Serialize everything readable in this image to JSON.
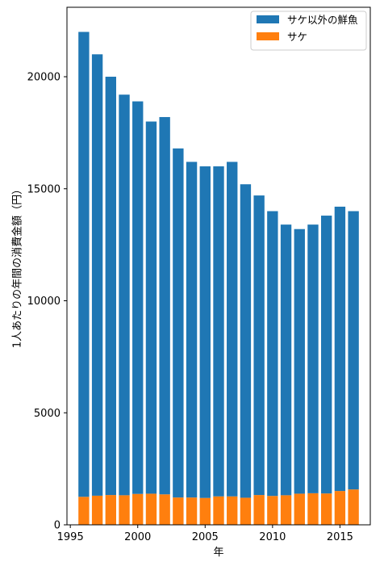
{
  "chart_data": {
    "type": "bar",
    "stacked": true,
    "x": [
      1996,
      1997,
      1998,
      1999,
      2000,
      2001,
      2002,
      2003,
      2004,
      2005,
      2006,
      2007,
      2008,
      2009,
      2010,
      2011,
      2012,
      2013,
      2014,
      2015,
      2016
    ],
    "series": [
      {
        "name": "サケ",
        "color": "#ff7f0e",
        "values": [
          1250,
          1300,
          1330,
          1320,
          1380,
          1390,
          1360,
          1220,
          1220,
          1200,
          1270,
          1270,
          1210,
          1330,
          1290,
          1320,
          1390,
          1410,
          1400,
          1510,
          1580
        ]
      },
      {
        "name": "サケ以外の鮮魚",
        "color": "#1f77b4",
        "values": [
          20750,
          19700,
          18670,
          17880,
          17520,
          16610,
          16840,
          15580,
          14980,
          14800,
          14730,
          14930,
          13990,
          13370,
          12710,
          12080,
          11810,
          11990,
          12400,
          12690,
          12420
        ]
      }
    ],
    "xticks": [
      1995,
      2000,
      2005,
      2010,
      2015
    ],
    "yticks": [
      0,
      5000,
      10000,
      15000,
      20000
    ],
    "xlim": [
      1994.75,
      2017.25
    ],
    "ylim": [
      0,
      23100
    ],
    "xlabel": "年",
    "ylabel": "1人あたりの年間の消費金額（円）",
    "legend": {
      "placement": "top-right",
      "items": [
        {
          "label": "サケ以外の鮮魚",
          "color": "#1f77b4"
        },
        {
          "label": "サケ",
          "color": "#ff7f0e"
        }
      ]
    },
    "grid": false
  }
}
